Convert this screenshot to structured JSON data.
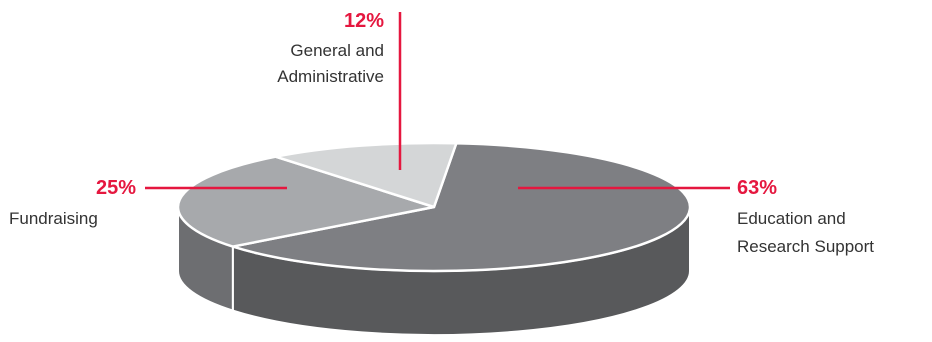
{
  "chart_data": {
    "type": "pie",
    "three_d": true,
    "slices": [
      {
        "label_lines": [
          "Education and",
          "Research Support"
        ],
        "value": 63,
        "pct_text": "63%",
        "color": "#7e7f83",
        "side_color": "#58595b"
      },
      {
        "label_lines": [
          "Fundraising"
        ],
        "value": 25,
        "pct_text": "25%",
        "color": "#a7a9ac",
        "side_color": "#6d6e71"
      },
      {
        "label_lines": [
          "General and",
          "Administrative"
        ],
        "value": 12,
        "pct_text": "12%",
        "color": "#d4d6d7",
        "side_color": "#bcbec0"
      }
    ],
    "accent_color": "#e5173f"
  }
}
